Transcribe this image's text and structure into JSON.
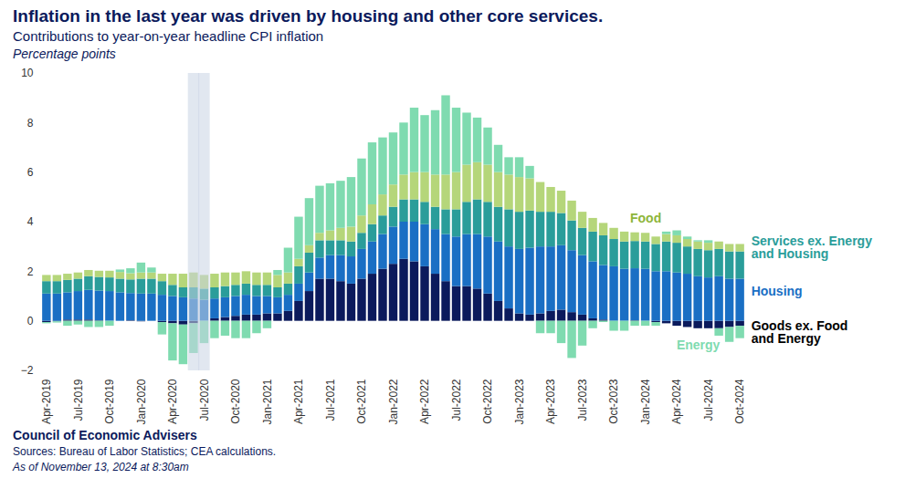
{
  "chart_data": {
    "type": "bar",
    "stacked": true,
    "grid": false,
    "title": "Inflation in the last year was driven by housing and other core services.",
    "subtitle": "Contributions to year-on-year headline CPI inflation",
    "y_label": "Percentage points",
    "caption": [
      "Council of Economic Advisers",
      "Sources: Bureau of Labor Statistics; CEA calculations.",
      "As of November 13, 2024 at 8:30am"
    ],
    "categories": [
      "Apr-2019",
      null,
      null,
      "Jul-2019",
      null,
      null,
      "Oct-2019",
      null,
      null,
      "Jan-2020",
      null,
      null,
      "Apr-2020",
      null,
      null,
      "Jul-2020",
      null,
      null,
      "Oct-2020",
      null,
      null,
      "Jan-2021",
      null,
      null,
      "Apr-2021",
      null,
      null,
      "Jul-2021",
      null,
      null,
      "Oct-2021",
      null,
      null,
      "Jan-2022",
      null,
      null,
      "Apr-2022",
      null,
      null,
      "Jul-2022",
      null,
      null,
      "Oct-2022",
      null,
      null,
      "Jan-2023",
      null,
      null,
      "Apr-2023",
      null,
      null,
      "Jul-2023",
      null,
      null,
      "Oct-2023",
      null,
      null,
      "Jan-2024",
      null,
      null,
      "Apr-2024",
      null,
      null,
      "Jul-2024",
      null,
      null,
      "Oct-2024"
    ],
    "highlight": [
      14,
      15
    ],
    "ylim": [
      -2,
      10
    ],
    "yticks": [
      -2,
      0,
      2,
      4,
      6,
      8,
      10
    ],
    "series": [
      {
        "name": "Goods ex. Food and Energy",
        "color": "#0b1a5c",
        "values": [
          -0.05,
          -0.02,
          0.05,
          0.05,
          0.05,
          0.02,
          0.0,
          0.0,
          0.02,
          -0.02,
          0.0,
          -0.05,
          -0.1,
          -0.15,
          -0.1,
          0.0,
          0.1,
          0.15,
          0.2,
          0.25,
          0.25,
          0.3,
          0.3,
          0.4,
          0.8,
          1.2,
          1.7,
          1.7,
          1.6,
          1.5,
          1.7,
          1.9,
          2.1,
          2.3,
          2.5,
          2.4,
          2.2,
          1.9,
          1.6,
          1.4,
          1.4,
          1.3,
          1.1,
          0.8,
          0.5,
          0.3,
          0.25,
          0.3,
          0.4,
          0.45,
          0.35,
          0.25,
          0.1,
          0.05,
          0.0,
          0.0,
          0.02,
          0.0,
          -0.05,
          -0.1,
          -0.2,
          -0.25,
          -0.3,
          -0.3,
          -0.3,
          -0.25,
          -0.2
        ]
      },
      {
        "name": "Housing",
        "color": "#1a6fc4",
        "values": [
          1.1,
          1.1,
          1.1,
          1.15,
          1.2,
          1.2,
          1.2,
          1.15,
          1.1,
          1.1,
          1.1,
          1.05,
          1.0,
          0.95,
          0.9,
          0.85,
          0.8,
          0.8,
          0.8,
          0.8,
          0.75,
          0.7,
          0.65,
          0.65,
          0.7,
          0.75,
          0.85,
          0.95,
          1.05,
          1.1,
          1.2,
          1.3,
          1.4,
          1.5,
          1.5,
          1.6,
          1.7,
          1.8,
          1.9,
          2.0,
          2.1,
          2.2,
          2.3,
          2.4,
          2.5,
          2.6,
          2.7,
          2.7,
          2.6,
          2.6,
          2.5,
          2.4,
          2.3,
          2.2,
          2.2,
          2.1,
          2.1,
          2.1,
          2.0,
          2.0,
          1.95,
          1.9,
          1.8,
          1.75,
          1.8,
          1.7,
          1.7
        ]
      },
      {
        "name": "Services ex. Energy and Housing",
        "color": "#2a9d9a",
        "values": [
          0.5,
          0.5,
          0.5,
          0.5,
          0.55,
          0.55,
          0.55,
          0.55,
          0.55,
          0.6,
          0.6,
          0.55,
          0.45,
          0.4,
          0.45,
          0.45,
          0.45,
          0.45,
          0.45,
          0.45,
          0.45,
          0.45,
          0.4,
          0.45,
          0.7,
          0.8,
          0.7,
          0.6,
          0.6,
          0.6,
          0.65,
          0.7,
          0.75,
          0.8,
          0.9,
          0.9,
          0.9,
          0.9,
          1.0,
          1.1,
          1.3,
          1.4,
          1.4,
          1.4,
          1.5,
          1.5,
          1.5,
          1.4,
          1.4,
          1.3,
          1.2,
          1.1,
          1.2,
          1.2,
          1.1,
          1.1,
          1.1,
          1.1,
          1.1,
          1.2,
          1.2,
          1.1,
          1.1,
          1.1,
          1.1,
          1.1,
          1.1
        ]
      },
      {
        "name": "Food",
        "color": "#b5d67a",
        "values": [
          0.25,
          0.25,
          0.25,
          0.25,
          0.25,
          0.25,
          0.27,
          0.27,
          0.25,
          0.25,
          0.25,
          0.3,
          0.45,
          0.55,
          0.6,
          0.55,
          0.55,
          0.55,
          0.5,
          0.5,
          0.5,
          0.5,
          0.5,
          0.45,
          0.3,
          0.3,
          0.3,
          0.4,
          0.5,
          0.6,
          0.7,
          0.8,
          0.85,
          0.9,
          1.0,
          1.1,
          1.2,
          1.3,
          1.4,
          1.5,
          1.5,
          1.5,
          1.5,
          1.4,
          1.4,
          1.4,
          1.3,
          1.2,
          1.0,
          0.9,
          0.8,
          0.65,
          0.55,
          0.5,
          0.45,
          0.4,
          0.35,
          0.35,
          0.3,
          0.3,
          0.3,
          0.3,
          0.3,
          0.3,
          0.3,
          0.3,
          0.3
        ]
      },
      {
        "name": "Energy",
        "color": "#7fdbb0",
        "values": [
          -0.05,
          -0.05,
          -0.2,
          -0.15,
          -0.25,
          -0.25,
          -0.2,
          0.1,
          0.2,
          0.4,
          0.2,
          -0.5,
          -1.5,
          -1.6,
          -1.2,
          -0.9,
          -0.7,
          -0.6,
          -0.7,
          -0.7,
          -0.5,
          -0.3,
          0.2,
          1.0,
          1.7,
          1.9,
          1.9,
          1.9,
          1.9,
          2.0,
          2.3,
          2.5,
          2.3,
          2.1,
          2.1,
          2.6,
          2.3,
          2.6,
          3.2,
          2.6,
          2.1,
          1.8,
          1.5,
          1.1,
          0.7,
          0.8,
          0.5,
          -0.5,
          -0.5,
          -0.9,
          -1.5,
          -1.0,
          -0.3,
          -0.05,
          -0.4,
          -0.4,
          -0.2,
          -0.2,
          -0.15,
          0.1,
          0.2,
          0.1,
          0.05,
          0.1,
          -0.3,
          -0.6,
          -0.5
        ]
      }
    ]
  }
}
